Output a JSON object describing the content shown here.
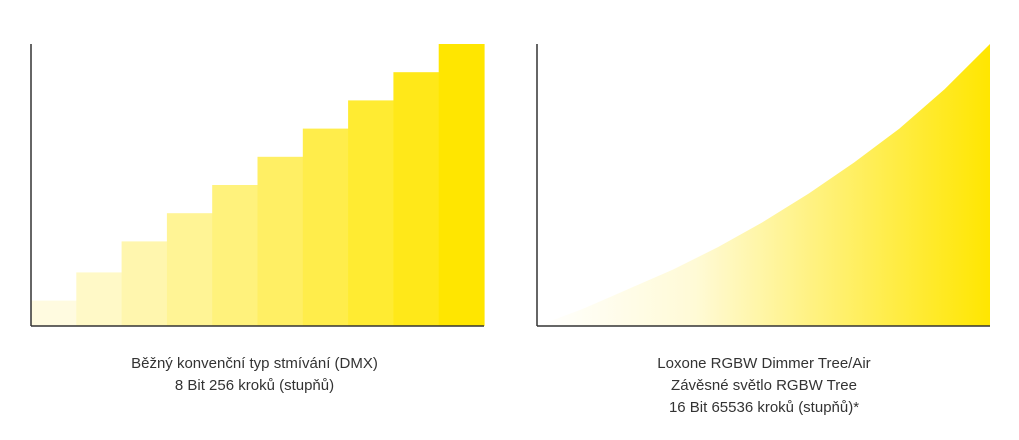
{
  "colors": {
    "bar_light": "#fffbe0",
    "bar_dark": "#ffe600",
    "axis": "#333333",
    "text": "#333333"
  },
  "chart_data": [
    {
      "type": "bar",
      "title": "",
      "xlabel": "",
      "ylabel": "",
      "grid": false,
      "legend": "none",
      "caption_lines": [
        "Běžný konvenční typ stmívání (DMX)",
        "8 Bit 256 kroků (stupňů)"
      ],
      "steps": 10,
      "values": [
        0.09,
        0.19,
        0.3,
        0.4,
        0.5,
        0.6,
        0.7,
        0.8,
        0.9,
        1.0
      ],
      "ylim": [
        0,
        1
      ],
      "gradient": [
        "#fffbe0",
        "#ffe600"
      ]
    },
    {
      "type": "area",
      "title": "",
      "xlabel": "",
      "ylabel": "",
      "grid": false,
      "legend": "none",
      "caption_lines": [
        "Loxone RGBW Dimmer Tree/Air",
        "Závěsné světlo RGBW Tree",
        "16 Bit 65536 kroků (stupňů)*"
      ],
      "x": [
        0,
        0.1,
        0.2,
        0.3,
        0.4,
        0.5,
        0.6,
        0.7,
        0.8,
        0.9,
        1.0
      ],
      "values": [
        0,
        0.06,
        0.13,
        0.2,
        0.28,
        0.37,
        0.47,
        0.58,
        0.7,
        0.84,
        1.0
      ],
      "ylim": [
        0,
        1
      ],
      "gradient": [
        "#ffffff",
        "#ffe600"
      ]
    }
  ]
}
